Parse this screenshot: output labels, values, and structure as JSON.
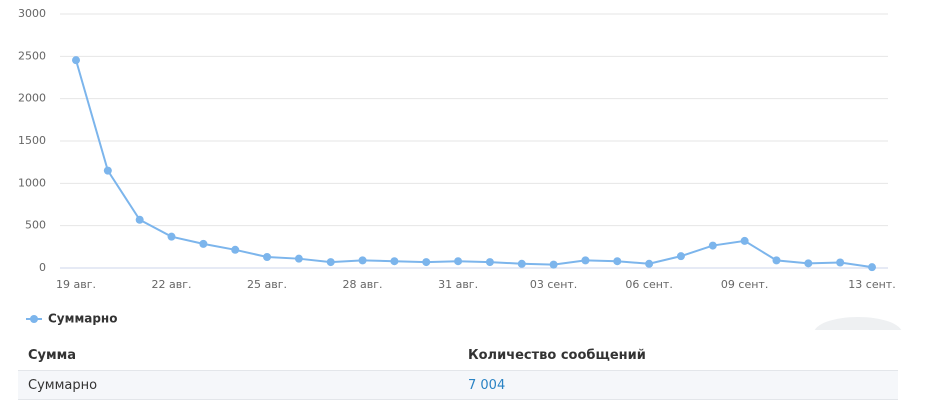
{
  "chart_data": {
    "type": "line",
    "categories": [
      "19 авг.",
      null,
      null,
      "22 авг.",
      null,
      null,
      "25 авг.",
      null,
      null,
      "28 авг.",
      null,
      null,
      "31 авг.",
      null,
      null,
      "03 сент.",
      null,
      null,
      "06 сент.",
      null,
      null,
      "09 сент.",
      null,
      null,
      null,
      "13 сент."
    ],
    "series": [
      {
        "name": "Суммарно",
        "color": "#7cb5ec",
        "values": [
          2455,
          1150,
          570,
          370,
          285,
          215,
          130,
          110,
          70,
          90,
          80,
          70,
          80,
          70,
          50,
          40,
          90,
          80,
          50,
          140,
          265,
          320,
          90,
          55,
          65,
          10
        ]
      }
    ],
    "ylim": [
      0,
      3000
    ],
    "yticks": [
      0,
      500,
      1000,
      1500,
      2000,
      2500,
      3000
    ],
    "grid": true,
    "legend": "bottom-left"
  },
  "table": {
    "header": [
      "Сумма",
      "Количество сообщений"
    ],
    "rows": [
      [
        "Суммарно",
        "7 004"
      ]
    ]
  }
}
